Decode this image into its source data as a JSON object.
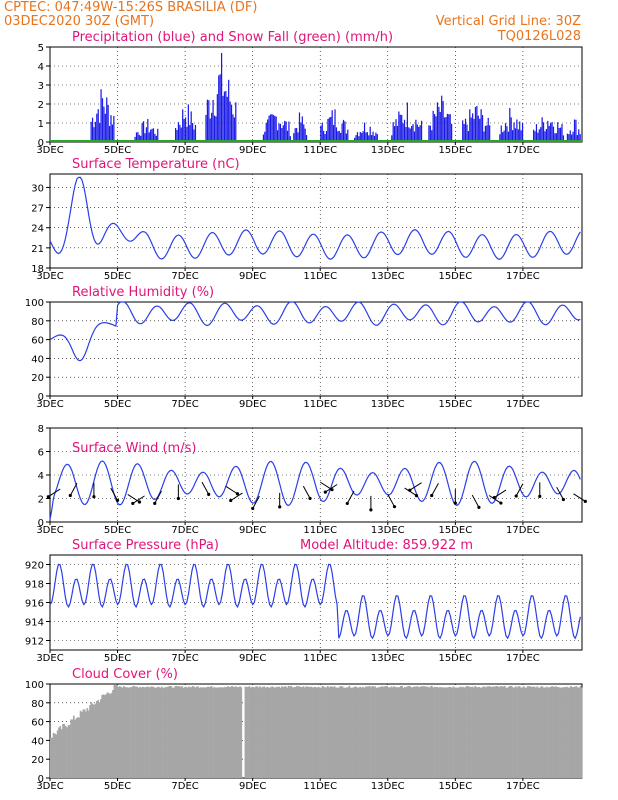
{
  "header": {
    "line1_left": "CPTEC:  047:49W-15:26S  BRASILIA (DF)",
    "line2_left": "03DEC2020 30Z (GMT)",
    "line1_right": "Vertical Grid Line: 30Z",
    "line2_right": "TQ0126L028"
  },
  "colors": {
    "header": "#e8741e",
    "title": "#e0157a",
    "line": "#2b3fe8",
    "precip": "#1a1ae6",
    "snow": "#22aa22",
    "cloud": "#a6a6a6",
    "wind_arrow": "#000000"
  },
  "x_axis": {
    "tick_labels": [
      "3DEC",
      "5DEC",
      "7DEC",
      "9DEC",
      "11DEC",
      "13DEC",
      "15DEC",
      "17DEC"
    ],
    "tick_day_offsets": [
      0,
      2,
      4,
      6,
      8,
      10,
      12,
      14
    ],
    "day_span": 15.75,
    "vertical_grid": "30Z"
  },
  "chart_data": [
    {
      "type": "bar",
      "id": "precip",
      "title": "Precipitation (blue) and Snow Fall (green) (mm/h)",
      "ylim": [
        0,
        5
      ],
      "yticks": [
        0,
        1,
        2,
        3,
        4,
        5
      ],
      "segments": [
        {
          "start": 1.2,
          "end": 1.9,
          "peak": 3.3
        },
        {
          "start": 2.5,
          "end": 3.2,
          "peak": 1.3
        },
        {
          "start": 3.7,
          "end": 4.3,
          "peak": 2.4
        },
        {
          "start": 4.6,
          "end": 5.5,
          "peak": 4.9
        },
        {
          "start": 6.3,
          "end": 7.1,
          "peak": 2.0
        },
        {
          "start": 7.2,
          "end": 7.6,
          "peak": 1.7
        },
        {
          "start": 8.0,
          "end": 8.8,
          "peak": 2.0
        },
        {
          "start": 9.0,
          "end": 9.7,
          "peak": 1.3
        },
        {
          "start": 10.1,
          "end": 11.0,
          "peak": 2.3
        },
        {
          "start": 11.2,
          "end": 11.9,
          "peak": 2.6
        },
        {
          "start": 12.2,
          "end": 13.0,
          "peak": 2.3
        },
        {
          "start": 13.3,
          "end": 14.0,
          "peak": 2.0
        },
        {
          "start": 14.3,
          "end": 15.2,
          "peak": 1.8
        },
        {
          "start": 15.3,
          "end": 15.7,
          "peak": 1.5
        }
      ],
      "snow_values": 0
    },
    {
      "type": "line",
      "id": "temperature",
      "title": "Surface Temperature (nC)",
      "ylim": [
        18,
        32
      ],
      "yticks": [
        18,
        21,
        24,
        27,
        30
      ],
      "base": 21.5,
      "amplitude": 1.8,
      "peak_event": {
        "day": 0.9,
        "value": 30.8
      },
      "values_hint": "daily cycle 19.5-25"
    },
    {
      "type": "line",
      "id": "humidity",
      "title": "Relative Humidity (%)",
      "ylim": [
        0,
        100
      ],
      "yticks": [
        0,
        20,
        40,
        60,
        80,
        100
      ],
      "min_event": {
        "day": 0.9,
        "value": 28
      },
      "range_hint": "70-100 after day 2"
    },
    {
      "type": "line",
      "id": "wind",
      "title": "Surface Wind (m/s)",
      "ylim": [
        0,
        8
      ],
      "yticks": [
        0,
        2,
        4,
        6,
        8
      ],
      "arrow_days": [
        0.3,
        0.8,
        1.3,
        1.8,
        2.3,
        2.8,
        3.3,
        3.8,
        4.5,
        5.2,
        5.7,
        6.2,
        6.8,
        7.5,
        8.0,
        8.5,
        9.0,
        9.5,
        10.0,
        10.5,
        11.0,
        11.5,
        12.0,
        12.5,
        13.0,
        13.5,
        14.0,
        14.5,
        15.0,
        15.5
      ]
    },
    {
      "type": "line",
      "id": "pressure",
      "title": "Surface Pressure (hPa)",
      "subtitle": "Model Altitude: 859.922 m",
      "ylim": [
        911,
        921
      ],
      "yticks": [
        912,
        914,
        916,
        918,
        920
      ]
    },
    {
      "type": "area",
      "id": "cloud",
      "title": "Cloud Cover (%)",
      "ylim": [
        0,
        100
      ],
      "yticks": [
        0,
        20,
        40,
        60,
        80,
        100
      ],
      "gap_day": 5.7,
      "range_hint": "ramps 40 to 100 over first 2 days, then ~97"
    }
  ]
}
